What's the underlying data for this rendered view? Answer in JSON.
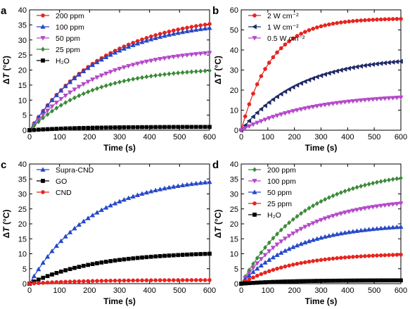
{
  "figure": {
    "panels": [
      {
        "letter": "a",
        "xlabel": "Time (s)",
        "ylabel_delta": "Δ",
        "ylabel_T": "T",
        "ylabel_unit": " (°C)",
        "xlim": [
          0,
          600
        ],
        "ylim": [
          0,
          40
        ],
        "xticks": [
          0,
          100,
          200,
          300,
          400,
          500,
          600
        ],
        "yticks": [
          0,
          5,
          10,
          15,
          20,
          25,
          30,
          35,
          40
        ],
        "legend_position": "top-left",
        "series": [
          {
            "name": "200 ppm",
            "color": "#e8231f",
            "marker": "circle",
            "final": 35.3,
            "k": 0.004
          },
          {
            "name": "100 ppm",
            "color": "#2448c8",
            "marker": "triangle-up",
            "final": 34.0,
            "k": 0.0042
          },
          {
            "name": "50 ppm",
            "color": "#b547c9",
            "marker": "triangle-down",
            "final": 25.7,
            "k": 0.0045
          },
          {
            "name": "25 ppm",
            "color": "#3a8a38",
            "marker": "diamond",
            "final": 19.8,
            "k": 0.0048
          },
          {
            "name": "H₂O",
            "color": "#000000",
            "marker": "square",
            "final": 1.1,
            "k": 0.006
          }
        ]
      },
      {
        "letter": "b",
        "xlabel": "Time (s)",
        "ylabel_delta": "Δ",
        "ylabel_T": "T",
        "ylabel_unit": " (°C)",
        "xlim": [
          0,
          600
        ],
        "ylim": [
          0,
          60
        ],
        "xticks": [
          0,
          100,
          200,
          300,
          400,
          500,
          600
        ],
        "yticks": [
          0,
          10,
          20,
          30,
          40,
          50,
          60
        ],
        "legend_position": "top-left",
        "series": [
          {
            "name": "2 W cm⁻²",
            "color": "#e8231f",
            "marker": "circle",
            "final": 55.5,
            "k": 0.0088
          },
          {
            "name": "1 W cm⁻²",
            "color": "#1f2a66",
            "marker": "triangle-left",
            "final": 34.3,
            "k": 0.0045
          },
          {
            "name": "0.5 W cm⁻²",
            "color": "#b547c9",
            "marker": "triangle-down",
            "final": 16.3,
            "k": 0.0038
          }
        ]
      },
      {
        "letter": "c",
        "xlabel": "Time (s)",
        "ylabel_delta": "Δ",
        "ylabel_T": "T",
        "ylabel_unit": " (°C)",
        "xlim": [
          0,
          600
        ],
        "ylim": [
          0,
          40
        ],
        "xticks": [
          0,
          100,
          200,
          300,
          400,
          500,
          600
        ],
        "yticks": [
          0,
          5,
          10,
          15,
          20,
          25,
          30,
          35,
          40
        ],
        "legend_position": "top-left",
        "series": [
          {
            "name": "Supra-CND",
            "color": "#2448c8",
            "marker": "triangle-up",
            "final": 34.0,
            "k": 0.0048
          },
          {
            "name": "GO",
            "color": "#000000",
            "marker": "square",
            "final": 10.0,
            "k": 0.0045
          },
          {
            "name": "CND",
            "color": "#e8231f",
            "marker": "circle",
            "final": 1.2,
            "k": 0.006
          }
        ]
      },
      {
        "letter": "d",
        "xlabel": "Time (s)",
        "ylabel_delta": "Δ",
        "ylabel_T": "T",
        "ylabel_unit": " (°C)",
        "xlim": [
          0,
          600
        ],
        "ylim": [
          0,
          40
        ],
        "xticks": [
          0,
          100,
          200,
          300,
          400,
          500,
          600
        ],
        "yticks": [
          0,
          5,
          10,
          15,
          20,
          25,
          30,
          35,
          40
        ],
        "legend_position": "top-left",
        "series": [
          {
            "name": "200 ppm",
            "color": "#3a8a38",
            "marker": "diamond",
            "final": 35.3,
            "k": 0.0042
          },
          {
            "name": "100 ppm",
            "color": "#b547c9",
            "marker": "triangle-down",
            "final": 26.8,
            "k": 0.0045
          },
          {
            "name": "50 ppm",
            "color": "#2448c8",
            "marker": "triangle-up",
            "final": 19.0,
            "k": 0.0048
          },
          {
            "name": "25 ppm",
            "color": "#e8231f",
            "marker": "circle",
            "final": 9.7,
            "k": 0.005
          },
          {
            "name": "H₂O",
            "color": "#000000",
            "marker": "square",
            "final": 1.1,
            "k": 0.006
          }
        ]
      }
    ]
  },
  "chart_data": [
    {
      "panel": "a",
      "type": "line",
      "xlabel": "Time (s)",
      "ylabel": "ΔT (°C)",
      "xlim": [
        0,
        600
      ],
      "ylim": [
        0,
        40
      ],
      "x": [
        0,
        100,
        200,
        300,
        400,
        500,
        600
      ],
      "series": [
        {
          "name": "200 ppm",
          "values": [
            0,
            16.2,
            24.8,
            29.6,
            32.4,
            34.1,
            35.3
          ]
        },
        {
          "name": "100 ppm",
          "values": [
            0,
            15.3,
            23.7,
            28.4,
            31.2,
            32.9,
            34.0
          ]
        },
        {
          "name": "50 ppm",
          "values": [
            0,
            10.8,
            17.0,
            20.7,
            23.0,
            24.6,
            25.7
          ]
        },
        {
          "name": "25 ppm",
          "values": [
            0,
            8.0,
            12.8,
            15.8,
            17.8,
            19.0,
            19.8
          ]
        },
        {
          "name": "H₂O",
          "values": [
            0,
            0.5,
            0.8,
            0.95,
            1.0,
            1.05,
            1.1
          ]
        }
      ]
    },
    {
      "panel": "b",
      "type": "line",
      "xlabel": "Time (s)",
      "ylabel": "ΔT (°C)",
      "xlim": [
        0,
        600
      ],
      "ylim": [
        0,
        60
      ],
      "x": [
        0,
        100,
        200,
        300,
        400,
        500,
        600
      ],
      "series": [
        {
          "name": "2 W cm⁻²",
          "values": [
            0,
            32.0,
            46.0,
            52.0,
            54.5,
            55.5,
            55.5
          ]
        },
        {
          "name": "1 W cm⁻²",
          "values": [
            0,
            14.5,
            22.5,
            27.5,
            30.8,
            32.8,
            34.3
          ]
        },
        {
          "name": "0.5 W cm⁻²",
          "values": [
            0,
            6.3,
            10.2,
            12.6,
            14.3,
            15.5,
            16.3
          ]
        }
      ]
    },
    {
      "panel": "c",
      "type": "line",
      "xlabel": "Time (s)",
      "ylabel": "ΔT (°C)",
      "xlim": [
        0,
        600
      ],
      "ylim": [
        0,
        40
      ],
      "x": [
        0,
        100,
        200,
        300,
        400,
        500,
        600
      ],
      "series": [
        {
          "name": "Supra-CND",
          "values": [
            0,
            16.0,
            25.0,
            29.5,
            32.0,
            33.3,
            34.0
          ]
        },
        {
          "name": "GO",
          "values": [
            0,
            4.2,
            6.6,
            8.0,
            9.0,
            9.6,
            10.0
          ]
        },
        {
          "name": "CND",
          "values": [
            0,
            0.6,
            0.9,
            1.05,
            1.1,
            1.15,
            1.2
          ]
        }
      ]
    },
    {
      "panel": "d",
      "type": "line",
      "xlabel": "Time (s)",
      "ylabel": "ΔT (°C)",
      "xlim": [
        0,
        600
      ],
      "ylim": [
        0,
        40
      ],
      "x": [
        0,
        100,
        200,
        300,
        400,
        500,
        600
      ],
      "series": [
        {
          "name": "200 ppm",
          "values": [
            0,
            14.0,
            22.6,
            28.0,
            31.6,
            33.8,
            35.3
          ]
        },
        {
          "name": "100 ppm",
          "values": [
            0,
            11.0,
            17.8,
            22.0,
            24.6,
            26.0,
            26.8
          ]
        },
        {
          "name": "50 ppm",
          "values": [
            0,
            8.0,
            12.9,
            15.9,
            17.6,
            18.5,
            19.0
          ]
        },
        {
          "name": "25 ppm",
          "values": [
            0,
            4.1,
            6.7,
            8.2,
            9.0,
            9.4,
            9.7
          ]
        },
        {
          "name": "H₂O",
          "values": [
            0,
            0.5,
            0.8,
            0.95,
            1.0,
            1.05,
            1.1
          ]
        }
      ]
    }
  ]
}
